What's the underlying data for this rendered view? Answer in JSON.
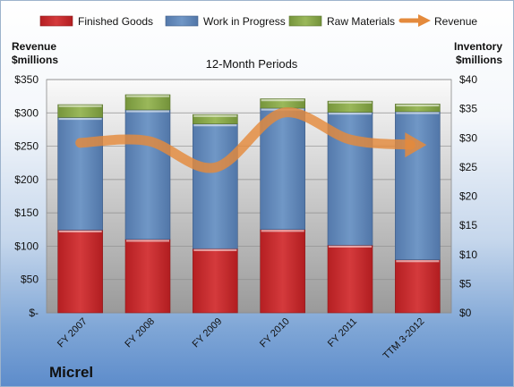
{
  "company_name": "Micrel",
  "chart_data": {
    "type": "bar",
    "stacked": true,
    "title": "12-Month Periods",
    "left_axis_label": [
      "Revenue",
      "$millions"
    ],
    "right_axis_label": [
      "Inventory",
      "$millions"
    ],
    "categories": [
      "FY 2007",
      "FY 2008",
      "FY 2009",
      "FY 2010",
      "FY 2011",
      "TTM 3-2012"
    ],
    "left_ticks": [
      "$-",
      "$50",
      "$100",
      "$150",
      "$200",
      "$250",
      "$300",
      "$350"
    ],
    "right_ticks": [
      "$0",
      "$5",
      "$10",
      "$15",
      "$20",
      "$25",
      "$30",
      "$35",
      "$40"
    ],
    "left_ylim": [
      0,
      350
    ],
    "right_ylim": [
      0,
      40
    ],
    "legend_position": "top",
    "series": [
      {
        "name": "Finished Goods",
        "axis": "right",
        "color": "#c0282a",
        "values": [
          14.2,
          12.6,
          11.0,
          14.3,
          11.6,
          9.1
        ]
      },
      {
        "name": "Work in Progress",
        "axis": "right",
        "color": "#5f86b8",
        "values": [
          19.3,
          22.2,
          21.4,
          20.8,
          22.8,
          25.4
        ]
      },
      {
        "name": "Raw Materials",
        "axis": "right",
        "color": "#86a549",
        "values": [
          2.2,
          2.6,
          1.6,
          1.6,
          1.9,
          1.3
        ]
      },
      {
        "name": "Revenue",
        "axis": "left",
        "type": "line",
        "color": "#e48a3c",
        "values": [
          255,
          258,
          218,
          300,
          260,
          252
        ]
      }
    ]
  }
}
